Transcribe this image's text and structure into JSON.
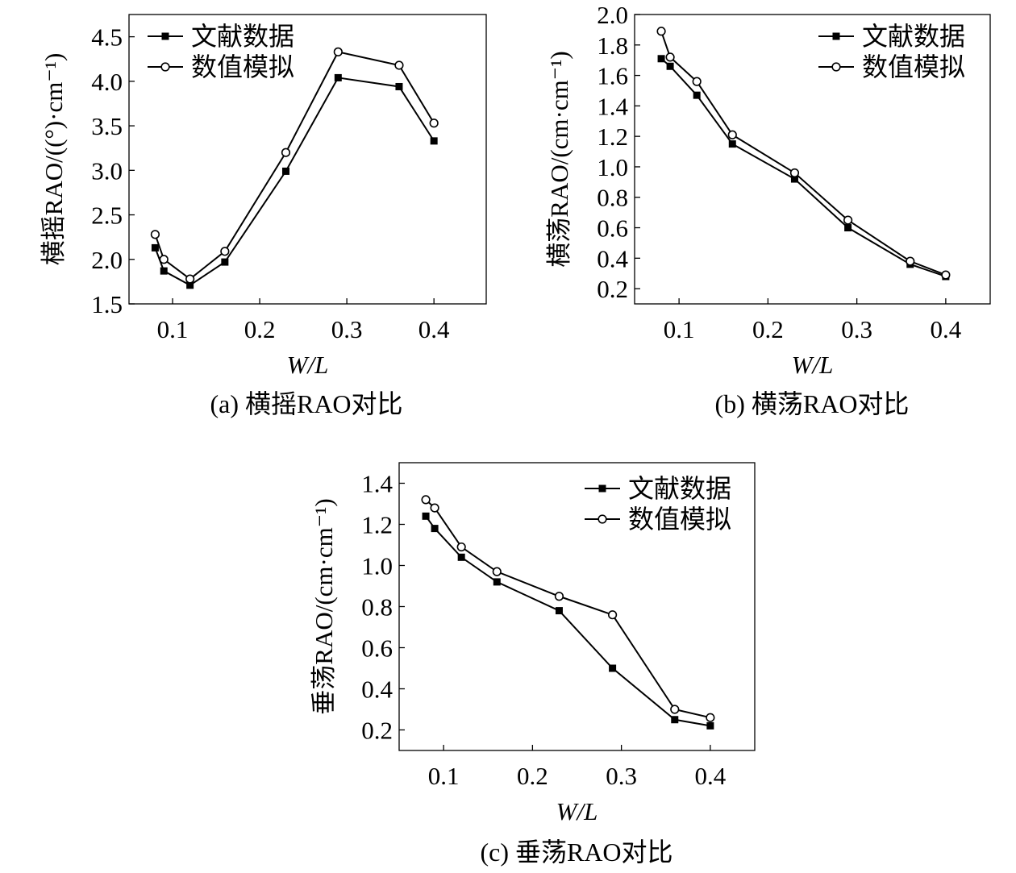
{
  "chart_data": [
    {
      "type": "line",
      "id": "a",
      "caption": "(a) 横摇RAO对比",
      "xlabel": "W/L",
      "ylabel": "横摇RAO/((°)·cm⁻¹)",
      "xlim": [
        0.05,
        0.46
      ],
      "ylim": [
        1.5,
        4.75
      ],
      "xticks": [
        0.1,
        0.2,
        0.3,
        0.4
      ],
      "xtick_labels": [
        "0.1",
        "0.2",
        "0.3",
        "0.4"
      ],
      "yticks": [
        1.5,
        2.0,
        2.5,
        3.0,
        3.5,
        4.0,
        4.5
      ],
      "ytick_labels": [
        "1.5",
        "2.0",
        "2.5",
        "3.0",
        "3.5",
        "4.0",
        "4.5"
      ],
      "legend_position": "top-left",
      "x": [
        0.08,
        0.09,
        0.12,
        0.16,
        0.23,
        0.29,
        0.36,
        0.4
      ],
      "series": [
        {
          "name": "文献数据",
          "marker": "filled-square",
          "values": [
            2.13,
            1.87,
            1.71,
            1.97,
            2.99,
            4.04,
            3.94,
            3.33
          ]
        },
        {
          "name": "数值模拟",
          "marker": "open-circle",
          "values": [
            2.28,
            2.0,
            1.78,
            2.09,
            3.2,
            4.33,
            4.18,
            3.53
          ]
        }
      ]
    },
    {
      "type": "line",
      "id": "b",
      "caption": "(b) 横荡RAO对比",
      "xlabel": "W/L",
      "ylabel": "横荡RAO/(cm·cm⁻¹)",
      "xlim": [
        0.05,
        0.45
      ],
      "ylim": [
        0.1,
        2.0
      ],
      "xticks": [
        0.1,
        0.2,
        0.3,
        0.4
      ],
      "xtick_labels": [
        "0.1",
        "0.2",
        "0.3",
        "0.4"
      ],
      "yticks": [
        0.2,
        0.4,
        0.6,
        0.8,
        1.0,
        1.2,
        1.4,
        1.6,
        1.8,
        2.0
      ],
      "ytick_labels": [
        "0.2",
        "0.4",
        "0.6",
        "0.8",
        "1.0",
        "1.2",
        "1.4",
        "1.6",
        "1.8",
        "2.0"
      ],
      "legend_position": "top-right",
      "x": [
        0.08,
        0.09,
        0.12,
        0.16,
        0.23,
        0.29,
        0.36,
        0.4
      ],
      "series": [
        {
          "name": "文献数据",
          "marker": "filled-square",
          "values": [
            1.71,
            1.66,
            1.47,
            1.15,
            0.92,
            0.6,
            0.36,
            0.28
          ]
        },
        {
          "name": "数值模拟",
          "marker": "open-circle",
          "values": [
            1.89,
            1.72,
            1.56,
            1.21,
            0.96,
            0.65,
            0.38,
            0.29
          ]
        }
      ]
    },
    {
      "type": "line",
      "id": "c",
      "caption": "(c) 垂荡RAO对比",
      "xlabel": "W/L",
      "ylabel": "垂荡RAO/(cm·cm⁻¹)",
      "xlim": [
        0.05,
        0.45
      ],
      "ylim": [
        0.1,
        1.5
      ],
      "xticks": [
        0.1,
        0.2,
        0.3,
        0.4
      ],
      "xtick_labels": [
        "0.1",
        "0.2",
        "0.3",
        "0.4"
      ],
      "yticks": [
        0.2,
        0.4,
        0.6,
        0.8,
        1.0,
        1.2,
        1.4
      ],
      "ytick_labels": [
        "0.2",
        "0.4",
        "0.6",
        "0.8",
        "1.0",
        "1.2",
        "1.4"
      ],
      "legend_position": "top-right",
      "x": [
        0.08,
        0.09,
        0.12,
        0.16,
        0.23,
        0.29,
        0.36,
        0.4
      ],
      "series": [
        {
          "name": "文献数据",
          "marker": "filled-square",
          "values": [
            1.24,
            1.18,
            1.04,
            0.92,
            0.78,
            0.5,
            0.25,
            0.22
          ]
        },
        {
          "name": "数值模拟",
          "marker": "open-circle",
          "values": [
            1.32,
            1.28,
            1.09,
            0.97,
            0.85,
            0.76,
            0.3,
            0.26
          ]
        }
      ]
    }
  ]
}
